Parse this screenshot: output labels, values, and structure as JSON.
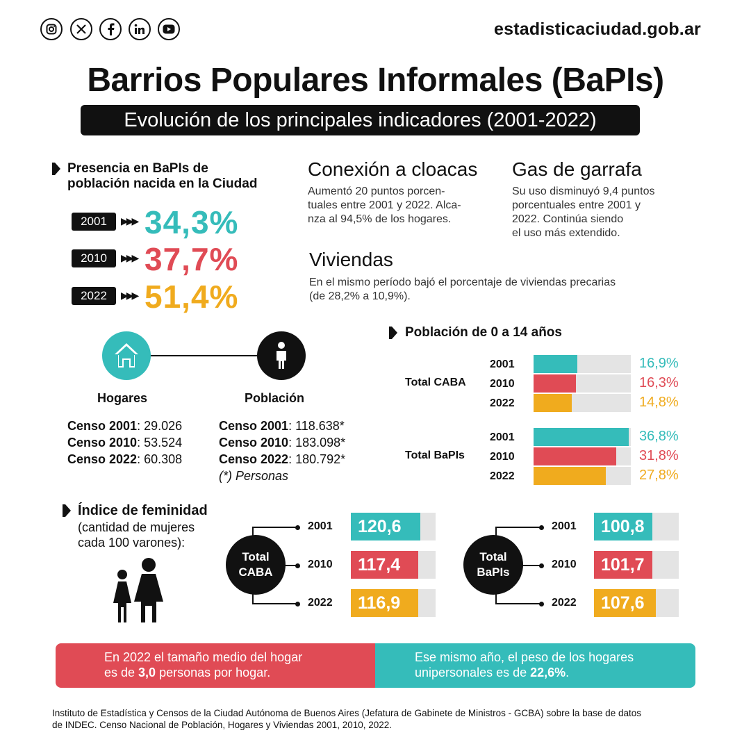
{
  "header": {
    "social_icons": [
      "instagram-icon",
      "x-icon",
      "facebook-icon",
      "linkedin-icon",
      "youtube-icon"
    ],
    "site": "estadisticaciudad.gob.ar"
  },
  "title": "Barrios Populares Informales (BaPIs)",
  "subtitle": "Evolución de los principales indicadores (2001-2022)",
  "presencia": {
    "title_line1": "Presencia en BaPIs de",
    "title_line2": "población nacida en la Ciudad",
    "rows": [
      {
        "year": "2001",
        "value": "34,3%",
        "color": "#35bcba"
      },
      {
        "year": "2010",
        "value": "37,7%",
        "color": "#e04b55"
      },
      {
        "year": "2022",
        "value": "51,4%",
        "color": "#f0ab1e"
      }
    ]
  },
  "cloacas": {
    "title": "Conexión a cloacas",
    "line1": "Aumentó 20 puntos porcen-",
    "line2": "tuales entre 2001 y 2022. Alca-",
    "line3": "nza al 94,5% de los hogares."
  },
  "garrafa": {
    "title": "Gas de garrafa",
    "line1": "Su uso disminuyó 9,4 puntos",
    "line2": "porcentuales entre 2001 y",
    "line3": "2022. Continúa siendo",
    "line4": "el uso más extendido."
  },
  "viviendas": {
    "title": "Viviendas",
    "line1": "En el mismo período bajó el porcentaje de viviendas precarias",
    "line2": "(de 28,2% a 10,9%)."
  },
  "hogares": {
    "label": "Hogares",
    "rows": [
      {
        "label": "Censo 2001",
        "value": ": 29.026"
      },
      {
        "label": "Censo 2010",
        "value": ": 53.524"
      },
      {
        "label": "Censo 2022",
        "value": ": 60.308"
      }
    ]
  },
  "poblacion": {
    "label": "Población",
    "rows": [
      {
        "label": "Censo 2001",
        "value": ": 118.638*"
      },
      {
        "label": "Censo 2010",
        "value": ": 183.098*"
      },
      {
        "label": "Censo 2022",
        "value": ": 180.792*"
      }
    ],
    "note": "(*) Personas"
  },
  "colors": {
    "teal": "#35bcba",
    "red": "#e04b55",
    "yellow": "#f0ab1e",
    "track": "#e4e4e4",
    "dark": "#111111"
  },
  "chart_data": [
    {
      "type": "bar",
      "title": "Población de 0 a 14 años",
      "groups": [
        {
          "name": "Total CABA",
          "categories": [
            "2001",
            "2010",
            "2022"
          ],
          "values": [
            16.9,
            16.3,
            14.8
          ],
          "labels": [
            "16,9%",
            "16,3%",
            "14,8%"
          ]
        },
        {
          "name": "Total BaPIs",
          "categories": [
            "2001",
            "2010",
            "2022"
          ],
          "values": [
            36.8,
            31.8,
            27.8
          ],
          "labels": [
            "36,8%",
            "31,8%",
            "27,8%"
          ]
        }
      ]
    },
    {
      "type": "bar",
      "title": "Índice de feminidad",
      "subtitle_line1": "(cantidad de mujeres",
      "subtitle_line2": "cada 100 varones):",
      "groups": [
        {
          "name_line1": "Total",
          "name_line2": "CABA",
          "categories": [
            "2001",
            "2010",
            "2022"
          ],
          "values": [
            120.6,
            117.4,
            116.9
          ],
          "labels": [
            "120,6",
            "117,4",
            "116,9"
          ]
        },
        {
          "name_line1": "Total",
          "name_line2": "BaPIs",
          "categories": [
            "2001",
            "2010",
            "2022"
          ],
          "values": [
            100.8,
            101.7,
            107.6
          ],
          "labels": [
            "100,8",
            "101,7",
            "107,6"
          ]
        }
      ]
    }
  ],
  "banner_left": {
    "line1": "En 2022 el tamaño medio del hogar",
    "line2_pre": "es de ",
    "line2_bold": "3,0",
    "line2_post": " personas por hogar."
  },
  "banner_right": {
    "line1": "Ese mismo año, el peso de los hogares",
    "line2_pre": "unipersonales es de ",
    "line2_bold": "22,6%",
    "line2_post": "."
  },
  "source": {
    "line1": "Instituto de Estadística y Censos de la Ciudad Autónoma de Buenos Aires (Jefatura de Gabinete de Ministros - GCBA) sobre la base de datos",
    "line2": "de INDEC. Censo Nacional de Población, Hogares y Viviendas 2001, 2010, 2022."
  }
}
